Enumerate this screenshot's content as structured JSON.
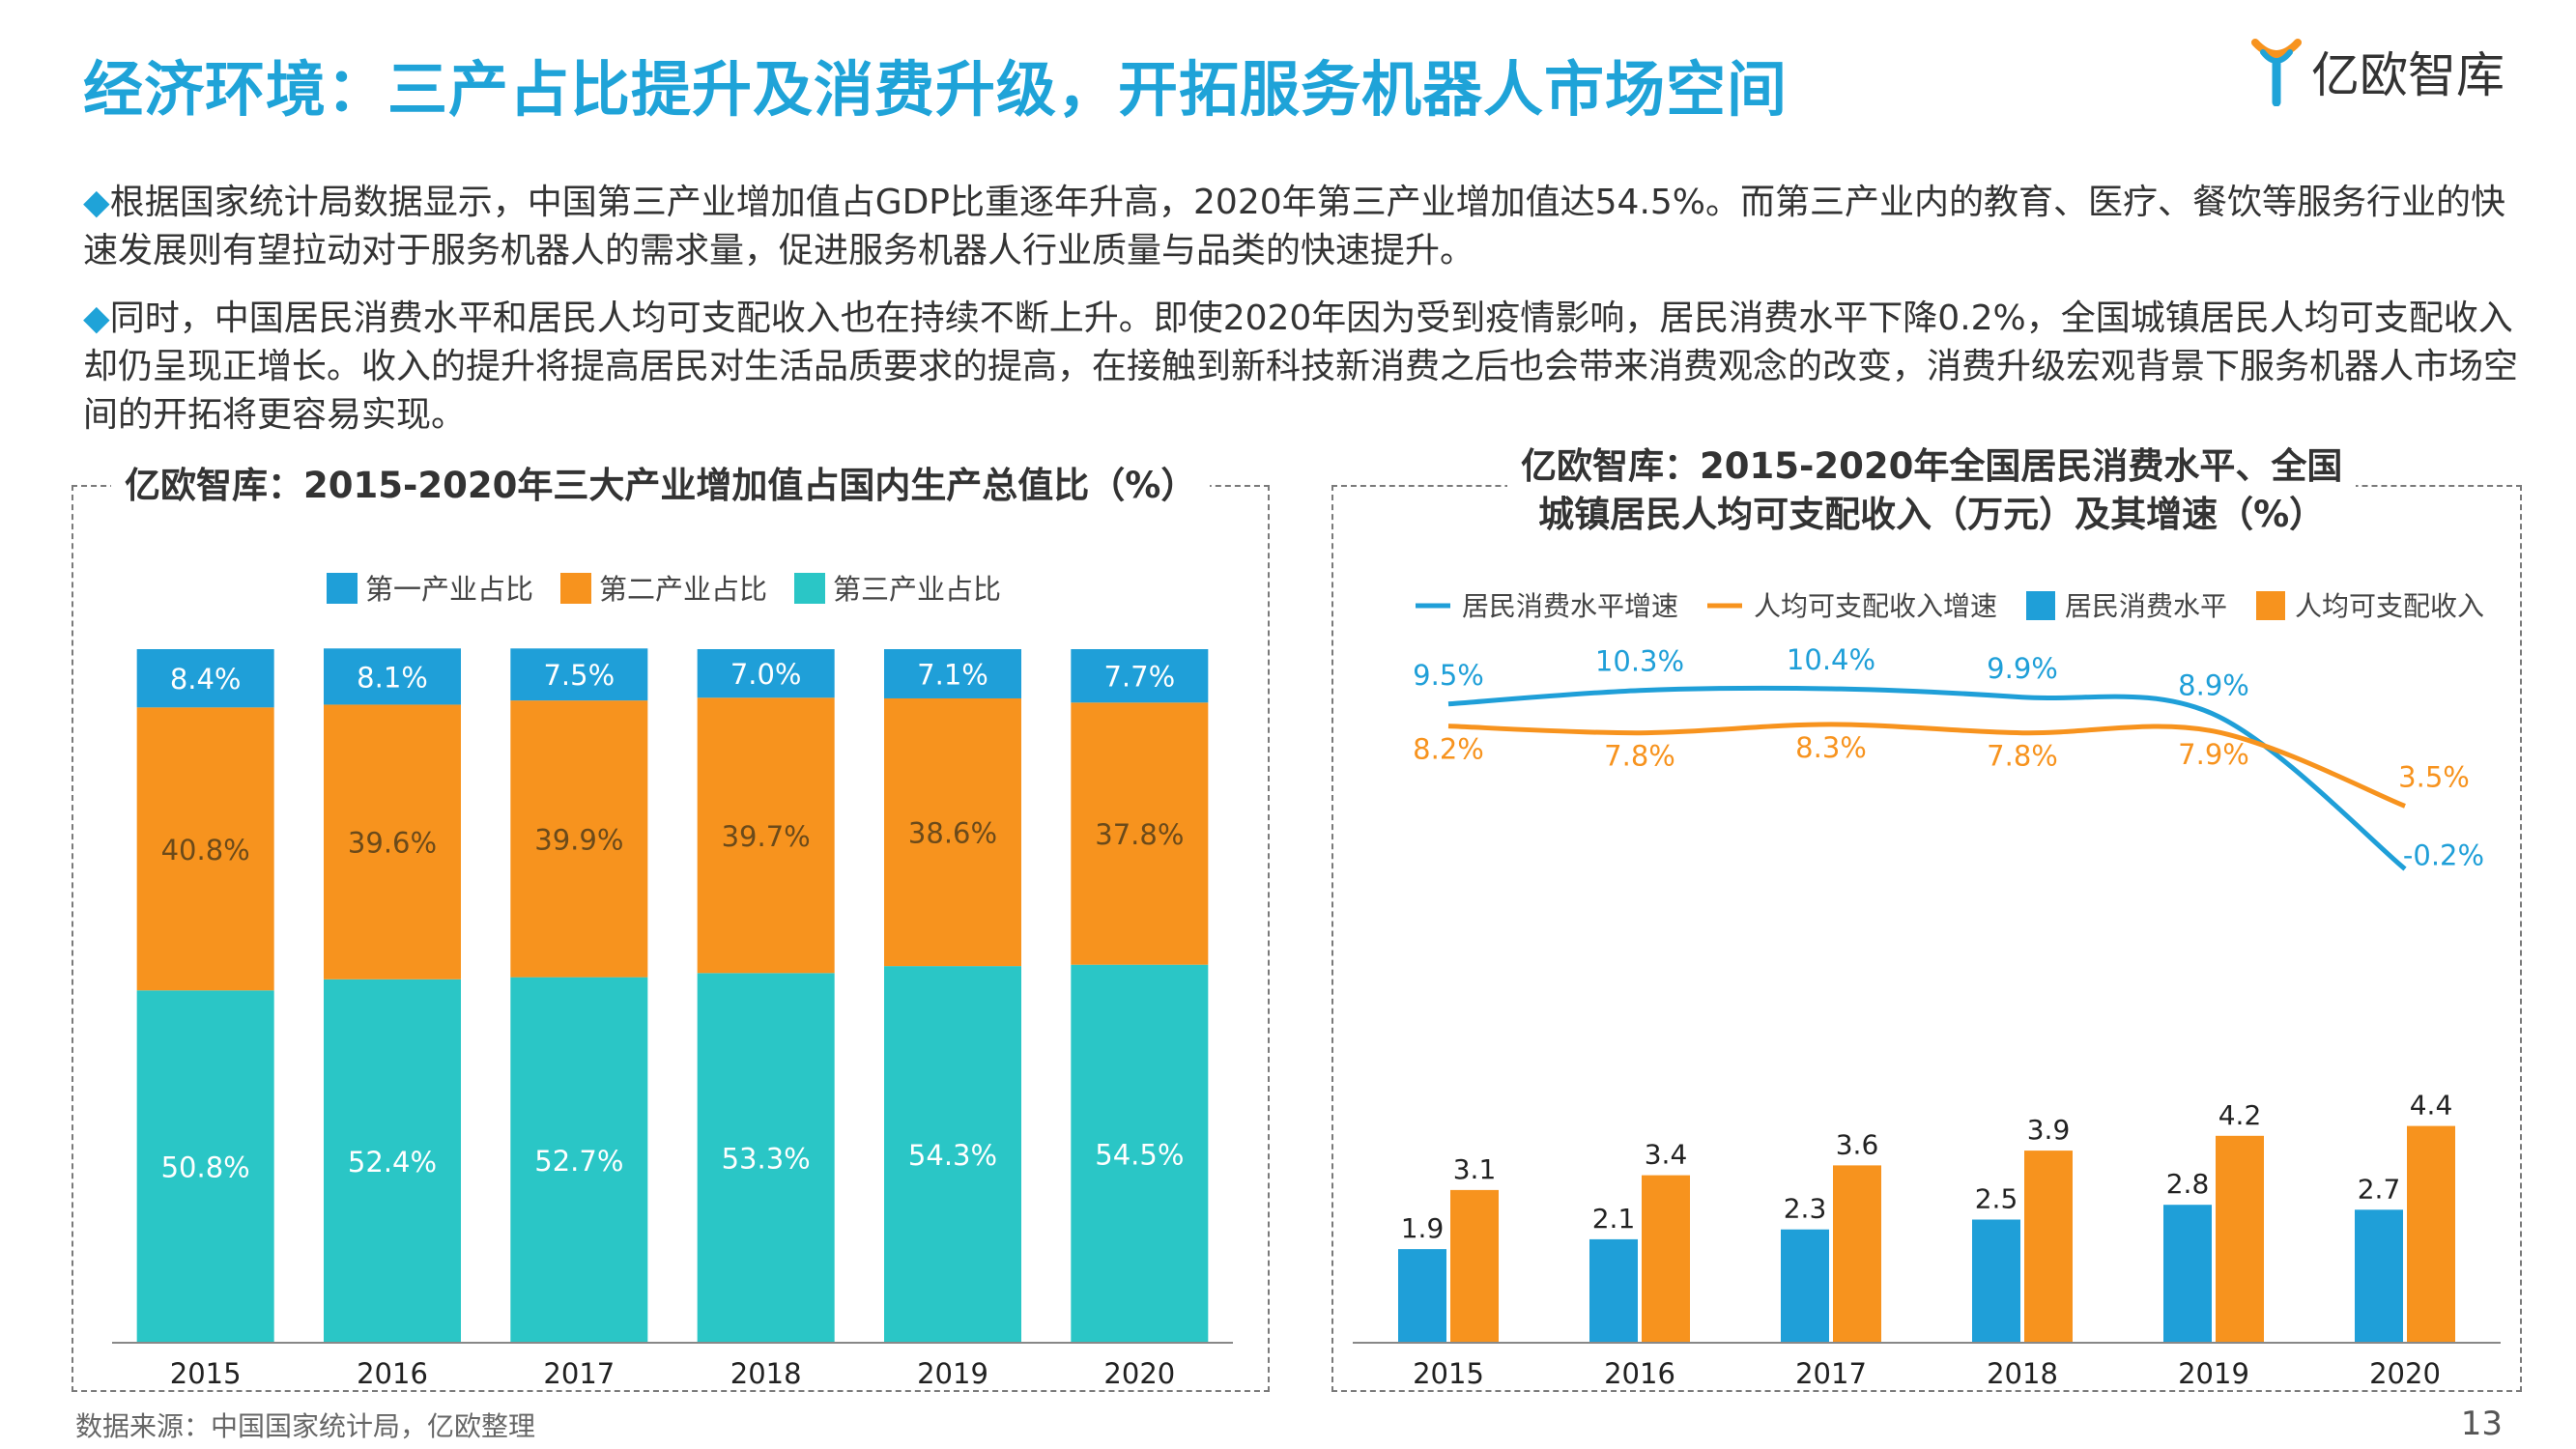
{
  "header": {
    "title": "经济环境：三产占比提升及消费升级，开拓服务机器人市场空间",
    "logo_text": "亿欧智库",
    "logo_icon": "yiou-logo-icon"
  },
  "paragraphs": [
    {
      "bullet": "◆",
      "text": "根据国家统计局数据显示，中国第三产业增加值占GDP比重逐年升高，2020年第三产业增加值达54.5%。而第三产业内的教育、医疗、餐饮等服务行业的快速发展则有望拉动对于服务机器人的需求量，促进服务机器人行业质量与品类的快速提升。"
    },
    {
      "bullet": "◆",
      "text": "同时，中国居民消费水平和居民人均可支配收入也在持续不断上升。即使2020年因为受到疫情影响，居民消费水平下降0.2%，全国城镇居民人均可支配收入却仍呈现正增长。收入的提升将提高居民对生活品质要求的提高，在接触到新科技新消费之后也会带来消费观念的改变，消费升级宏观背景下服务机器人市场空间的开拓将更容易实现。"
    }
  ],
  "footer": {
    "source": "数据来源：中国国家统计局，亿欧整理",
    "page": "13"
  },
  "colors": {
    "blue": "#1f9fd8",
    "orange": "#f7931e",
    "teal": "#2ac6c6",
    "title": "#1fa3d8"
  },
  "chart_data": [
    {
      "type": "bar",
      "stacked": true,
      "title": "亿欧智库：2015-2020年三大产业增加值占国内生产总值比（%）",
      "categories": [
        "2015",
        "2016",
        "2017",
        "2018",
        "2019",
        "2020"
      ],
      "series": [
        {
          "name": "第一产业占比",
          "color": "#1f9fd8",
          "values": [
            8.4,
            8.1,
            7.5,
            7.0,
            7.1,
            7.7
          ],
          "labels": [
            "8.4%",
            "8.1%",
            "7.5%",
            "7.0%",
            "7.1%",
            "7.7%"
          ]
        },
        {
          "name": "第二产业占比",
          "color": "#f7931e",
          "values": [
            40.8,
            39.6,
            39.9,
            39.7,
            38.6,
            37.8
          ],
          "labels": [
            "40.8%",
            "39.6%",
            "39.9%",
            "39.7%",
            "38.6%",
            "37.8%"
          ]
        },
        {
          "name": "第三产业占比",
          "color": "#2ac6c6",
          "values": [
            50.8,
            52.4,
            52.7,
            53.3,
            54.3,
            54.5
          ],
          "labels": [
            "50.8%",
            "52.4%",
            "52.7%",
            "53.3%",
            "54.3%",
            "54.5%"
          ]
        }
      ],
      "legend": "top",
      "ylim": [
        0,
        100
      ],
      "grid": false
    },
    {
      "type": "bar",
      "title_lines": [
        "亿欧智库：2015-2020年全国居民消费水平、全国",
        "城镇居民人均可支配收入（万元）及其增速（%）"
      ],
      "categories": [
        "2015",
        "2016",
        "2017",
        "2018",
        "2019",
        "2020"
      ],
      "series": [
        {
          "name": "居民消费水平",
          "type": "bar",
          "color": "#1f9fd8",
          "values": [
            1.9,
            2.1,
            2.3,
            2.5,
            2.8,
            2.7
          ],
          "labels": [
            "1.9",
            "2.1",
            "2.3",
            "2.5",
            "2.8",
            "2.7"
          ]
        },
        {
          "name": "人均可支配收入",
          "type": "bar",
          "color": "#f7931e",
          "values": [
            3.1,
            3.4,
            3.6,
            3.9,
            4.2,
            4.4
          ],
          "labels": [
            "3.1",
            "3.4",
            "3.6",
            "3.9",
            "4.2",
            "4.4"
          ]
        },
        {
          "name": "居民消费水平增速",
          "type": "line",
          "color": "#1f9fd8",
          "values": [
            9.5,
            10.3,
            10.4,
            9.9,
            8.9,
            -0.2
          ],
          "labels": [
            "9.5%",
            "10.3%",
            "10.4%",
            "9.9%",
            "8.9%",
            "-0.2%"
          ]
        },
        {
          "name": "人均可支配收入增速",
          "type": "line",
          "color": "#f7931e",
          "values": [
            8.2,
            7.8,
            8.3,
            7.8,
            7.9,
            3.5
          ],
          "labels": [
            "8.2%",
            "7.8%",
            "8.3%",
            "7.8%",
            "7.9%",
            "3.5%"
          ]
        }
      ],
      "legend_order": [
        "居民消费水平增速",
        "人均可支配收入增速",
        "居民消费水平",
        "人均可支配收入"
      ],
      "legend": "top",
      "grid": false
    }
  ]
}
